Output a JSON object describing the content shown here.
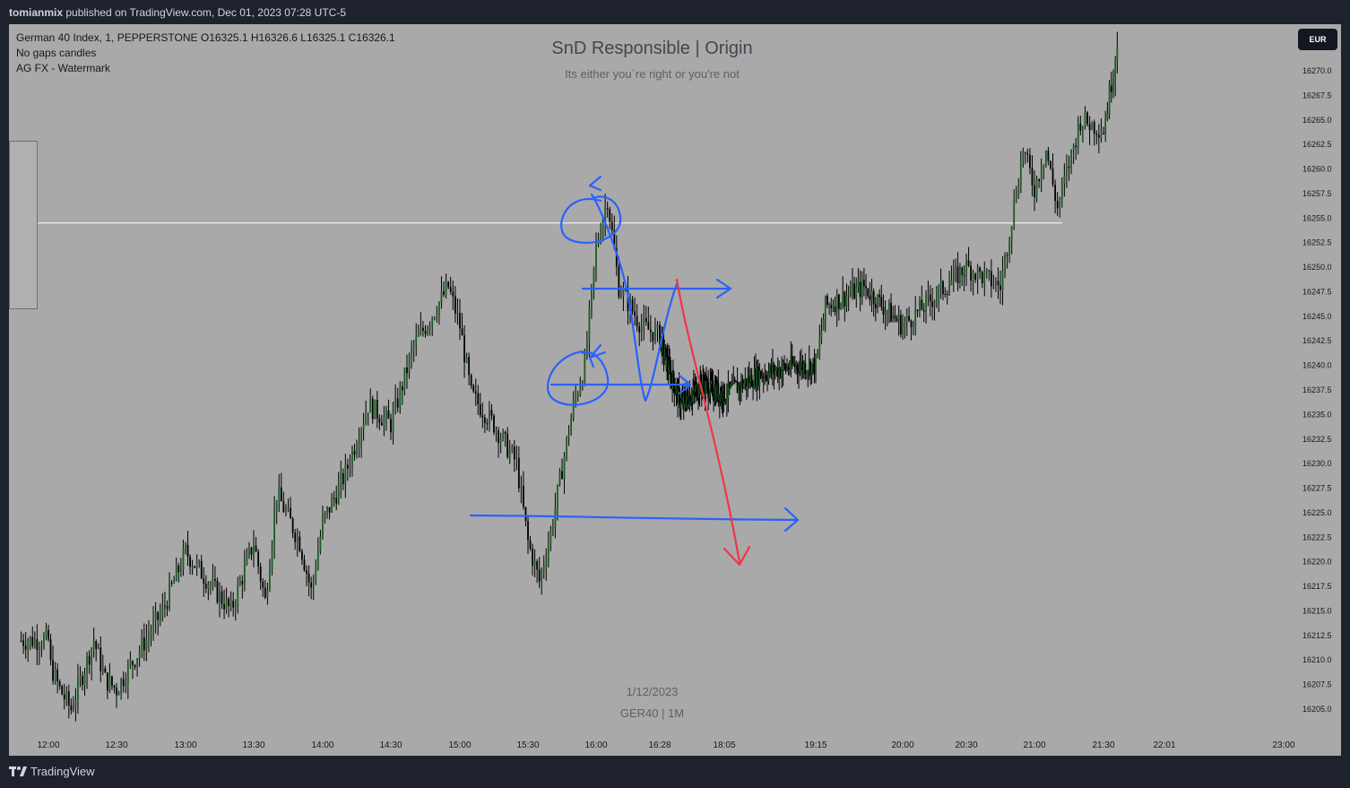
{
  "header": {
    "user": "tomianmix",
    "published_text": "published on TradingView.com, Dec 01, 2023 07:28 UTC-5"
  },
  "legend": {
    "symbol_line": "German 40 Index, 1, PEPPERSTONE  O16325.1  H16326.6  L16325.1  C16326.1",
    "line2": "No gaps candles",
    "line3": "AG FX - Watermark"
  },
  "watermark": {
    "title": "SnD Responsible | Origin",
    "subtitle": "Its either you´re right or you're not",
    "date": "1/12/2023",
    "symbol": "GER40 | 1M"
  },
  "currency": "EUR",
  "footer": {
    "brand": "TradingView"
  },
  "colors": {
    "chart_bg": "#a9a9a9",
    "frame_bg": "#1e222d",
    "candle": "#000000",
    "blue_drawing": "#2962ff",
    "red_drawing": "#f23645"
  },
  "chart_data": {
    "type": "candlestick",
    "ylim": [
      16203.5,
      16278
    ],
    "y_ticks": [
      "16270.0",
      "16267.5",
      "16265.0",
      "16262.5",
      "16260.0",
      "16257.5",
      "16255.0",
      "16252.5",
      "16250.0",
      "16247.5",
      "16245.0",
      "16242.5",
      "16240.0",
      "16237.5",
      "16235.0",
      "16232.5",
      "16230.0",
      "16227.5",
      "16225.0",
      "16222.5",
      "16220.0",
      "16217.5",
      "16215.0",
      "16212.5",
      "16210.0",
      "16207.5",
      "16205.0"
    ],
    "x_ticks": [
      "12:00",
      "12:30",
      "13:00",
      "13:30",
      "14:00",
      "14:30",
      "15:00",
      "15:30",
      "16:00",
      "16:28",
      "18:05",
      "19:15",
      "20:00",
      "20:30",
      "21:00",
      "21:30",
      "22:01",
      "23:00"
    ],
    "horizontal_line": 16254.5,
    "price_path": [
      [
        "12:00",
        16210
      ],
      [
        "12:05",
        16207
      ],
      [
        "12:10",
        16205
      ],
      [
        "12:20",
        16212
      ],
      [
        "12:25",
        16208
      ],
      [
        "12:30",
        16207
      ],
      [
        "12:40",
        16211
      ],
      [
        "12:50",
        16215
      ],
      [
        "13:00",
        16221
      ],
      [
        "13:10",
        16218
      ],
      [
        "13:20",
        16215
      ],
      [
        "13:30",
        16222
      ],
      [
        "13:35",
        16216
      ],
      [
        "13:40",
        16227
      ],
      [
        "13:50",
        16222
      ],
      [
        "13:55",
        16217
      ],
      [
        "14:00",
        16224
      ],
      [
        "14:10",
        16229
      ],
      [
        "14:20",
        16236
      ],
      [
        "14:30",
        16234
      ],
      [
        "14:40",
        16242
      ],
      [
        "14:50",
        16246
      ],
      [
        "14:55",
        16248
      ],
      [
        "15:00",
        16244
      ],
      [
        "15:05",
        16237
      ],
      [
        "15:15",
        16234
      ],
      [
        "15:25",
        16230
      ],
      [
        "15:30",
        16222
      ],
      [
        "15:35",
        16218
      ],
      [
        "15:40",
        16223
      ],
      [
        "15:50",
        16236
      ],
      [
        "15:55",
        16240
      ],
      [
        "16:00",
        16252
      ],
      [
        "16:05",
        16257
      ],
      [
        "16:10",
        16248
      ],
      [
        "16:20",
        16244
      ],
      [
        "16:28",
        16243
      ],
      [
        "16:40",
        16240
      ],
      [
        "17:00",
        16236
      ],
      [
        "17:30",
        16238
      ],
      [
        "18:05",
        16237
      ],
      [
        "18:30",
        16239
      ],
      [
        "19:00",
        16240
      ],
      [
        "19:15",
        16240
      ],
      [
        "19:20",
        16246
      ],
      [
        "19:40",
        16248
      ],
      [
        "20:00",
        16244
      ],
      [
        "20:10",
        16246
      ],
      [
        "20:30",
        16250
      ],
      [
        "20:45",
        16248
      ],
      [
        "20:55",
        16262
      ],
      [
        "21:00",
        16258
      ],
      [
        "21:05",
        16262
      ],
      [
        "21:10",
        16256
      ],
      [
        "21:20",
        16265
      ],
      [
        "21:30",
        16264
      ],
      [
        "21:35",
        16270
      ],
      [
        "21:40",
        16278
      ]
    ]
  }
}
